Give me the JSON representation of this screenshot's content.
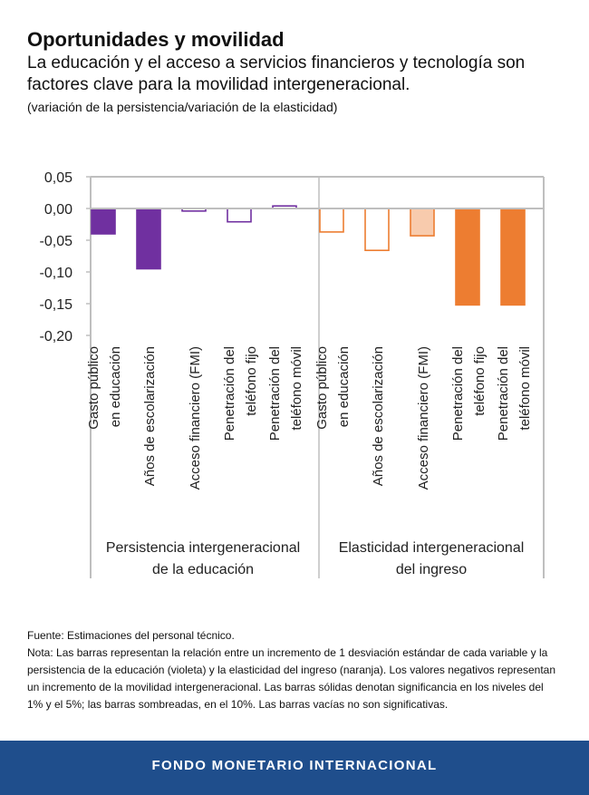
{
  "title": "Oportunidades y movilidad",
  "subtitle": "La educación y el acceso a servicios financieros y tecnología son factores clave para la movilidad intergeneracional.",
  "units": "(variación de la persistencia/variación de la elasticidad)",
  "colors": {
    "violet": "#7030a0",
    "orange": "#ed7d31",
    "orange_shaded": "#f8cbad",
    "axis": "#bfbfbf",
    "footer": "#1f4e8c"
  },
  "chart_data": {
    "type": "bar",
    "ylim": [
      -0.2,
      0.05
    ],
    "yticks": [
      "0,05",
      "0,00",
      "-0,05",
      "-0,10",
      "-0,15",
      "-0,20"
    ],
    "grid": false,
    "groups": [
      {
        "label_lines": [
          "Persistencia intergeneracional",
          "de la educación"
        ],
        "color": "violet",
        "bars": [
          {
            "label_lines": [
              "Gasto público",
              "en educación"
            ],
            "value": -0.04,
            "style": "solid"
          },
          {
            "label_lines": [
              "Años de escolarización"
            ],
            "value": -0.095,
            "style": "solid"
          },
          {
            "label_lines": [
              "Acceso financiero (FMI)"
            ],
            "value": -0.004,
            "style": "empty"
          },
          {
            "label_lines": [
              "Penetración del",
              "teléfono fijo"
            ],
            "value": -0.021,
            "style": "empty"
          },
          {
            "label_lines": [
              "Penetración del",
              "teléfono móvil"
            ],
            "value": 0.004,
            "style": "empty"
          }
        ]
      },
      {
        "label_lines": [
          "Elasticidad intergeneracional",
          "del ingreso"
        ],
        "color": "orange",
        "bars": [
          {
            "label_lines": [
              "Gasto público",
              "en educación"
            ],
            "value": -0.037,
            "style": "empty"
          },
          {
            "label_lines": [
              "Años de escolarización"
            ],
            "value": -0.066,
            "style": "empty"
          },
          {
            "label_lines": [
              "Acceso financiero (FMI)"
            ],
            "value": -0.043,
            "style": "shaded"
          },
          {
            "label_lines": [
              "Penetración del",
              "teléfono fijo"
            ],
            "value": -0.152,
            "style": "solid"
          },
          {
            "label_lines": [
              "Penetración del",
              "teléfono móvil"
            ],
            "value": -0.152,
            "style": "solid"
          }
        ]
      }
    ]
  },
  "footnote": {
    "source": "Fuente: Estimaciones del personal técnico.",
    "note": "Nota: Las barras representan la relación entre un incremento de 1 desviación estándar de cada variable y la persistencia de la educación (violeta) y la elasticidad del ingreso (naranja). Los valores negativos representan un incremento de la movilidad intergeneracional. Las barras sólidas denotan significancia en los niveles del 1% y el 5%; las barras sombreadas, en el 10%. Las barras vacías no son significativas."
  },
  "footer": {
    "label": "FONDO MONETARIO INTERNACIONAL"
  }
}
